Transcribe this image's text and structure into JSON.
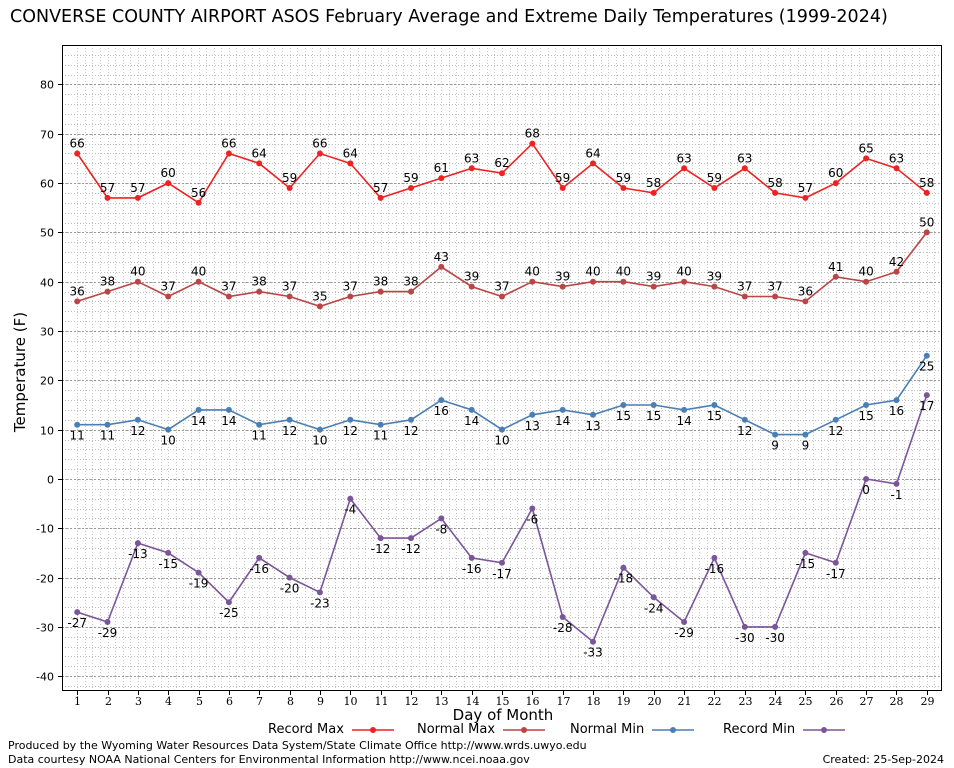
{
  "chart_data": {
    "type": "line",
    "title": "CONVERSE COUNTY AIRPORT ASOS February Average and Extreme Daily Temperatures (1999-2024)",
    "xlabel": "Day of Month",
    "ylabel": "Temperature (F)",
    "x": [
      1,
      2,
      3,
      4,
      5,
      6,
      7,
      8,
      9,
      10,
      11,
      12,
      13,
      14,
      15,
      16,
      17,
      18,
      19,
      20,
      21,
      22,
      23,
      24,
      25,
      26,
      27,
      28,
      29
    ],
    "ylim": [
      -43,
      88
    ],
    "yticks": [
      -40,
      -30,
      -20,
      -10,
      0,
      10,
      20,
      30,
      40,
      50,
      60,
      70,
      80
    ],
    "grid": true,
    "legend_placement": "bottom",
    "series": [
      {
        "name": "Record Max",
        "color": "#ee2222",
        "values": [
          66,
          57,
          57,
          60,
          56,
          66,
          64,
          59,
          66,
          64,
          57,
          59,
          61,
          63,
          62,
          68,
          59,
          64,
          59,
          58,
          63,
          59,
          63,
          58,
          57,
          60,
          65,
          63,
          58
        ]
      },
      {
        "name": "Normal Max",
        "color": "#bb4444",
        "values": [
          36,
          38,
          40,
          37,
          40,
          37,
          38,
          37,
          35,
          37,
          38,
          38,
          43,
          39,
          37,
          40,
          39,
          40,
          40,
          39,
          40,
          39,
          37,
          37,
          36,
          41,
          40,
          42,
          50
        ]
      },
      {
        "name": "Normal Min",
        "color": "#4a7fb5",
        "values": [
          11,
          11,
          12,
          10,
          14,
          14,
          11,
          12,
          10,
          12,
          11,
          12,
          16,
          14,
          10,
          13,
          14,
          13,
          15,
          15,
          14,
          15,
          12,
          9,
          9,
          12,
          15,
          16,
          25
        ]
      },
      {
        "name": "Record Min",
        "color": "#7b559a",
        "values": [
          -27,
          -29,
          -13,
          -15,
          -19,
          -25,
          -16,
          -20,
          -23,
          -4,
          -12,
          -12,
          -8,
          -16,
          -17,
          -6,
          -28,
          -33,
          -18,
          -24,
          -29,
          -16,
          -30,
          -30,
          -15,
          -17,
          0,
          -1,
          17
        ]
      }
    ]
  },
  "footer": {
    "credit_line1": "Produced by the Wyoming Water Resources Data System/State Climate Office http://www.wrds.uwyo.edu",
    "credit_line2": "Data courtesy NOAA National Centers for Environmental Information http://www.ncei.noaa.gov",
    "created": "Created:  25-Sep-2024"
  }
}
